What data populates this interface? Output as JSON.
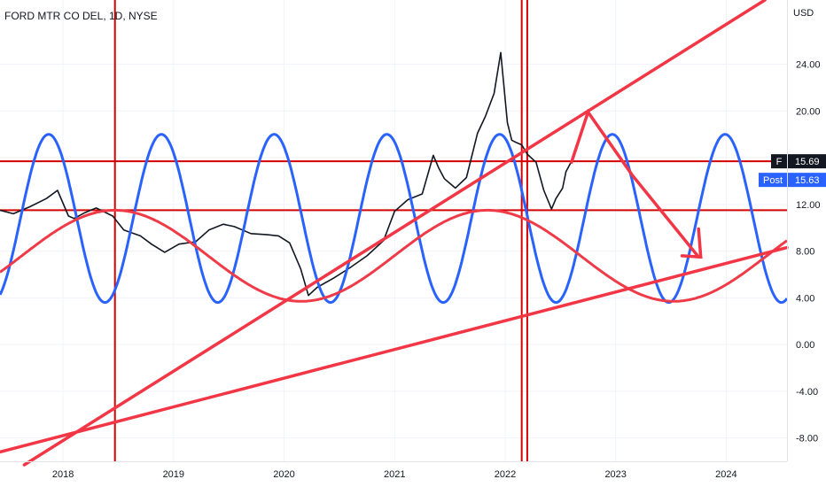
{
  "chart_data": {
    "type": "line",
    "title": "FORD MTR CO DEL, 1D, NYSE",
    "currency_label": "USD",
    "y_ticks": [
      24,
      20,
      16,
      12,
      8,
      4,
      0,
      -4,
      -8
    ],
    "y_tick_labels": [
      "24.00",
      "20.00",
      "16.00",
      "12.00",
      "8.00",
      "4.00",
      "0.00",
      "-4.00",
      "-8.00"
    ],
    "ylim": [
      -10,
      29.5
    ],
    "x_ticks": [
      2018,
      2019,
      2020,
      2021,
      2022,
      2023,
      2024
    ],
    "x_tick_labels": [
      "2018",
      "2019",
      "2020",
      "2021",
      "2022",
      "2023",
      "2024"
    ],
    "xlim": [
      2017.43,
      2024.55
    ],
    "grid": true,
    "price_tag": {
      "symbol": "F",
      "value": "15.69",
      "color": "#131722"
    },
    "post_tag": {
      "label": "Post",
      "value": "15.63",
      "color": "#2962ff"
    },
    "series": [
      {
        "color": "#131722",
        "x": [
          2017.43,
          2017.55,
          2017.7,
          2017.85,
          2017.95,
          2018.05,
          2018.1,
          2018.2,
          2018.3,
          2018.45,
          2018.55,
          2018.7,
          2018.8,
          2018.92,
          2019.05,
          2019.2,
          2019.32,
          2019.45,
          2019.55,
          2019.7,
          2019.85,
          2019.95,
          2020.05,
          2020.15,
          2020.22,
          2020.3,
          2020.45,
          2020.6,
          2020.75,
          2020.9,
          2021.0,
          2021.12,
          2021.25,
          2021.35,
          2021.4,
          2021.45,
          2021.55,
          2021.65,
          2021.75,
          2021.82,
          2021.9,
          2021.96,
          2022.02,
          2022.06,
          2022.1,
          2022.15,
          2022.2,
          2022.28,
          2022.35,
          2022.42,
          2022.46,
          2022.52,
          2022.55,
          2022.6
        ],
        "y": [
          11.5,
          11.2,
          11.8,
          12.5,
          13.2,
          11.0,
          10.8,
          11.3,
          11.7,
          11.0,
          9.8,
          9.3,
          8.6,
          7.9,
          8.6,
          8.8,
          9.8,
          10.3,
          10.1,
          9.5,
          9.4,
          9.3,
          8.7,
          6.5,
          4.2,
          4.9,
          5.7,
          6.6,
          7.6,
          8.9,
          11.4,
          12.4,
          12.9,
          16.2,
          15.1,
          14.2,
          13.4,
          14.3,
          18.1,
          19.5,
          21.5,
          25.0,
          19.0,
          17.5,
          17.3,
          17.1,
          16.3,
          15.6,
          13.2,
          11.6,
          12.5,
          13.4,
          14.8,
          15.69
        ]
      },
      {
        "color": "#2962ff",
        "x": [
          2017.43,
          2024.55
        ],
        "y": [
          3.6,
          11.5
        ],
        "wave": {
          "period_years": 1.02,
          "amplitude": 7.2,
          "center": 10.8,
          "peak_at": 2017.87
        }
      },
      {
        "color": "#ef3a47",
        "x": [
          2017.43,
          2024.55
        ],
        "y": [
          5.3,
          11.6
        ],
        "wave": {
          "period_years": 3.37,
          "amplitude": 3.9,
          "center": 7.6,
          "peak_at": 2018.47
        }
      }
    ],
    "trend_lines": [
      {
        "color": "#f23645",
        "x": [
          2017.43,
          2024.55
        ],
        "y": [
          -9.2,
          8.3
        ]
      },
      {
        "color": "#f23645",
        "x": [
          2017.65,
          2024.35
        ],
        "y": [
          -10.3,
          29.5
        ]
      },
      {
        "color": "#f23645",
        "x": [
          2022.6,
          2022.75,
          2023.15,
          2023.75
        ],
        "y": [
          15.6,
          19.9,
          14.5,
          7.5
        ],
        "arrow": true
      },
      {
        "color": "#f23645",
        "x": [
          2023.75,
          2023.77,
          2023.6
        ],
        "y": [
          9.9,
          7.5,
          7.6
        ]
      }
    ],
    "horizontal_lines": [
      {
        "color": "#d50000",
        "y": 15.69
      },
      {
        "color": "#d50000",
        "y": 11.5
      }
    ],
    "vertical_lines": [
      {
        "color": "#d50000",
        "x": 2018.47
      },
      {
        "color": "#d50000",
        "x": 2022.15
      },
      {
        "color": "#d50000",
        "x": 2022.2
      }
    ]
  }
}
